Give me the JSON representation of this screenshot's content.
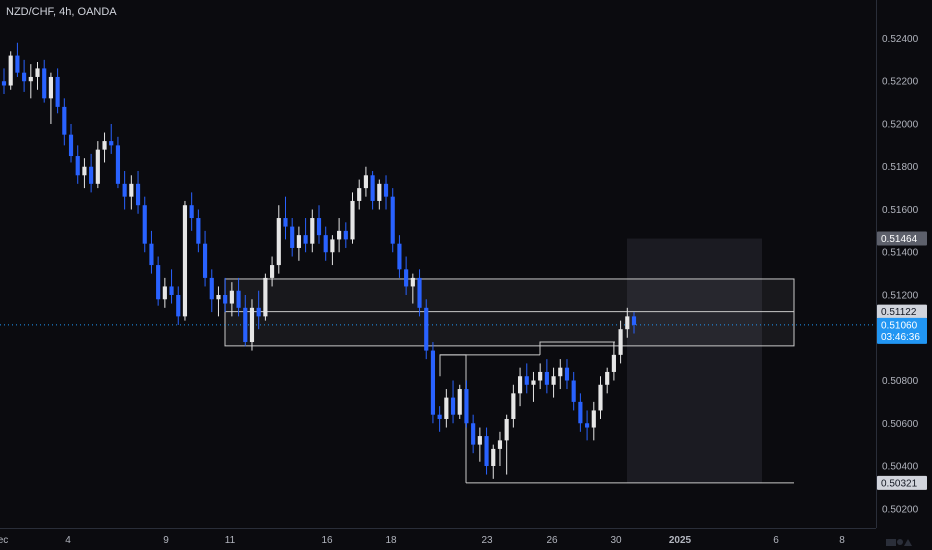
{
  "header": {
    "symbol_label": "NZD/CHF, 4h, OANDA"
  },
  "colors": {
    "background": "#0b0b0f",
    "bull": "#e6e6e6",
    "bear": "#2962ff",
    "grid_text": "#b2b5be",
    "current_price_bg": "#2196f3",
    "zone_line": "#c8c8c8",
    "projection": "#1e1e26"
  },
  "chart_data": {
    "type": "candlestick",
    "symbol": "NZD/CHF",
    "timeframe": "4h",
    "source": "OANDA",
    "ylim": [
      0.5011,
      0.5258
    ],
    "y_ticks": [
      "0.52400",
      "0.52200",
      "0.52000",
      "0.51800",
      "0.51600",
      "0.51400",
      "0.51200",
      "0.51000",
      "0.50800",
      "0.50600",
      "0.50400",
      "0.50200"
    ],
    "x_ticks": [
      "ec",
      "4",
      "9",
      "11",
      "16",
      "18",
      "23",
      "26",
      "30",
      "2025",
      "6",
      "8"
    ],
    "price_labels": {
      "target": "0.51464",
      "zone_top": "0.51122",
      "current": "0.51060",
      "countdown": "03:46:36",
      "stop": "0.50321"
    },
    "levels": {
      "target": 0.51464,
      "zone_high": 0.51275,
      "zone_mid": 0.51122,
      "zone_low": 0.50962,
      "current": 0.5106,
      "stop": 0.50321
    },
    "candles": [
      [
        0.522,
        0.5226,
        0.5214,
        0.5218
      ],
      [
        0.5218,
        0.5234,
        0.5216,
        0.5232
      ],
      [
        0.5232,
        0.5238,
        0.5222,
        0.5224
      ],
      [
        0.5224,
        0.523,
        0.5215,
        0.522
      ],
      [
        0.522,
        0.5228,
        0.5212,
        0.5222
      ],
      [
        0.5222,
        0.5229,
        0.5216,
        0.5226
      ],
      [
        0.5226,
        0.523,
        0.521,
        0.5212
      ],
      [
        0.5212,
        0.5224,
        0.52,
        0.5222
      ],
      [
        0.5222,
        0.5226,
        0.5205,
        0.5208
      ],
      [
        0.5208,
        0.5212,
        0.519,
        0.5195
      ],
      [
        0.5195,
        0.52,
        0.5182,
        0.5185
      ],
      [
        0.5185,
        0.519,
        0.5172,
        0.5176
      ],
      [
        0.5176,
        0.5184,
        0.517,
        0.518
      ],
      [
        0.518,
        0.5186,
        0.5168,
        0.5172
      ],
      [
        0.5172,
        0.5192,
        0.517,
        0.5188
      ],
      [
        0.5188,
        0.5196,
        0.5182,
        0.5192
      ],
      [
        0.5192,
        0.52,
        0.5186,
        0.519
      ],
      [
        0.519,
        0.5194,
        0.517,
        0.5172
      ],
      [
        0.5172,
        0.5178,
        0.516,
        0.5166
      ],
      [
        0.5166,
        0.5176,
        0.516,
        0.5172
      ],
      [
        0.5172,
        0.5178,
        0.5158,
        0.5162
      ],
      [
        0.5162,
        0.5166,
        0.514,
        0.5144
      ],
      [
        0.5144,
        0.515,
        0.513,
        0.5134
      ],
      [
        0.5134,
        0.5138,
        0.5115,
        0.5118
      ],
      [
        0.5118,
        0.5128,
        0.5114,
        0.5124
      ],
      [
        0.5124,
        0.5132,
        0.5116,
        0.512
      ],
      [
        0.512,
        0.5124,
        0.5106,
        0.511
      ],
      [
        0.511,
        0.5164,
        0.5108,
        0.5162
      ],
      [
        0.5162,
        0.5168,
        0.515,
        0.5156
      ],
      [
        0.5156,
        0.516,
        0.514,
        0.5144
      ],
      [
        0.5144,
        0.515,
        0.5124,
        0.5128
      ],
      [
        0.5128,
        0.5132,
        0.5112,
        0.5118
      ],
      [
        0.5118,
        0.5124,
        0.511,
        0.512
      ],
      [
        0.512,
        0.5128,
        0.5112,
        0.5116
      ],
      [
        0.5116,
        0.5126,
        0.511,
        0.5122
      ],
      [
        0.5122,
        0.5128,
        0.511,
        0.5114
      ],
      [
        0.5114,
        0.512,
        0.5096,
        0.5098
      ],
      [
        0.5098,
        0.5118,
        0.5094,
        0.5114
      ],
      [
        0.5114,
        0.5122,
        0.5104,
        0.511
      ],
      [
        0.511,
        0.513,
        0.5108,
        0.5128
      ],
      [
        0.5128,
        0.5138,
        0.5124,
        0.5134
      ],
      [
        0.5134,
        0.5162,
        0.513,
        0.5156
      ],
      [
        0.5156,
        0.5166,
        0.5146,
        0.5152
      ],
      [
        0.5152,
        0.5156,
        0.5138,
        0.5142
      ],
      [
        0.5142,
        0.5152,
        0.5136,
        0.5148
      ],
      [
        0.5148,
        0.5156,
        0.514,
        0.5144
      ],
      [
        0.5144,
        0.516,
        0.514,
        0.5156
      ],
      [
        0.5156,
        0.5162,
        0.5144,
        0.5148
      ],
      [
        0.5148,
        0.5152,
        0.5136,
        0.514
      ],
      [
        0.514,
        0.5148,
        0.5134,
        0.5146
      ],
      [
        0.5146,
        0.5156,
        0.514,
        0.515
      ],
      [
        0.515,
        0.5154,
        0.5142,
        0.5146
      ],
      [
        0.5146,
        0.5168,
        0.5144,
        0.5164
      ],
      [
        0.5164,
        0.5174,
        0.516,
        0.517
      ],
      [
        0.517,
        0.518,
        0.5166,
        0.5176
      ],
      [
        0.5176,
        0.5178,
        0.516,
        0.5164
      ],
      [
        0.5164,
        0.5174,
        0.516,
        0.5172
      ],
      [
        0.5172,
        0.5176,
        0.516,
        0.5166
      ],
      [
        0.5166,
        0.517,
        0.514,
        0.5144
      ],
      [
        0.5144,
        0.5148,
        0.5128,
        0.5132
      ],
      [
        0.5132,
        0.5138,
        0.512,
        0.5124
      ],
      [
        0.5124,
        0.513,
        0.5116,
        0.5128
      ],
      [
        0.5128,
        0.5132,
        0.511,
        0.5114
      ],
      [
        0.5114,
        0.5118,
        0.509,
        0.5094
      ],
      [
        0.5094,
        0.5098,
        0.506,
        0.5064
      ],
      [
        0.5064,
        0.5068,
        0.5056,
        0.5062
      ],
      [
        0.5062,
        0.5076,
        0.5058,
        0.5072
      ],
      [
        0.5072,
        0.508,
        0.506,
        0.5064
      ],
      [
        0.5064,
        0.5078,
        0.5062,
        0.5076
      ],
      [
        0.5076,
        0.508,
        0.5058,
        0.506
      ],
      [
        0.506,
        0.5064,
        0.5046,
        0.505
      ],
      [
        0.505,
        0.5058,
        0.5042,
        0.5054
      ],
      [
        0.5054,
        0.5058,
        0.5036,
        0.504
      ],
      [
        0.504,
        0.505,
        0.5034,
        0.5048
      ],
      [
        0.5048,
        0.5056,
        0.504,
        0.5052
      ],
      [
        0.5052,
        0.5064,
        0.5036,
        0.5062
      ],
      [
        0.5062,
        0.5078,
        0.5058,
        0.5074
      ],
      [
        0.5074,
        0.5086,
        0.5068,
        0.5082
      ],
      [
        0.5082,
        0.5088,
        0.5074,
        0.5078
      ],
      [
        0.5078,
        0.5084,
        0.507,
        0.508
      ],
      [
        0.508,
        0.5088,
        0.5076,
        0.5084
      ],
      [
        0.5084,
        0.509,
        0.5074,
        0.5078
      ],
      [
        0.5078,
        0.5086,
        0.5072,
        0.5082
      ],
      [
        0.5082,
        0.509,
        0.5076,
        0.5086
      ],
      [
        0.5086,
        0.509,
        0.5076,
        0.508
      ],
      [
        0.508,
        0.5084,
        0.5066,
        0.507
      ],
      [
        0.507,
        0.5074,
        0.5056,
        0.506
      ],
      [
        0.506,
        0.5066,
        0.5052,
        0.5058
      ],
      [
        0.5058,
        0.507,
        0.5052,
        0.5066
      ],
      [
        0.5066,
        0.5082,
        0.5062,
        0.5078
      ],
      [
        0.5078,
        0.5086,
        0.5074,
        0.5084
      ],
      [
        0.5084,
        0.5098,
        0.508,
        0.5092
      ],
      [
        0.5092,
        0.5108,
        0.5088,
        0.5104
      ],
      [
        0.5104,
        0.5114,
        0.51,
        0.511
      ],
      [
        0.511,
        0.5112,
        0.5102,
        0.5106
      ]
    ]
  }
}
